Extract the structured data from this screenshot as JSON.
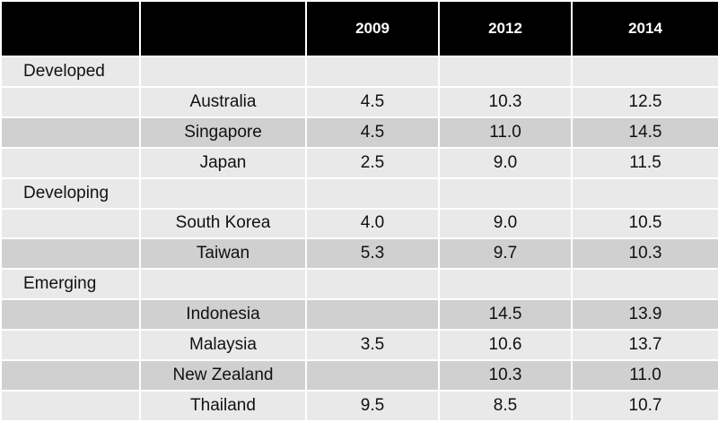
{
  "table": {
    "columns": [
      "2009",
      "2012",
      "2014"
    ],
    "rows": [
      {
        "group": "Developed"
      },
      {
        "country": "Australia",
        "values": [
          "4.5",
          "10.3",
          "12.5"
        ]
      },
      {
        "country": "Singapore",
        "values": [
          "4.5",
          "11.0",
          "14.5"
        ]
      },
      {
        "country": "Japan",
        "values": [
          "2.5",
          "9.0",
          "11.5"
        ]
      },
      {
        "group": "Developing"
      },
      {
        "country": "South Korea",
        "values": [
          "4.0",
          "9.0",
          "10.5"
        ]
      },
      {
        "country": "Taiwan",
        "values": [
          "5.3",
          "9.7",
          "10.3"
        ]
      },
      {
        "group": "Emerging"
      },
      {
        "country": "Indonesia",
        "values": [
          null,
          "14.5",
          "13.9"
        ]
      },
      {
        "country": "Malaysia",
        "values": [
          "3.5",
          "10.6",
          "13.7"
        ]
      },
      {
        "country": "New Zealand",
        "values": [
          null,
          "10.3",
          "11.0"
        ]
      },
      {
        "country": "Thailand",
        "values": [
          "9.5",
          "8.5",
          "10.7"
        ]
      }
    ]
  }
}
